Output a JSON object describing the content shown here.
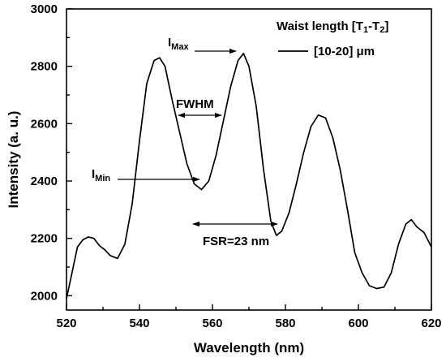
{
  "chart_data": {
    "type": "line",
    "xlabel": "Wavelength (nm)",
    "ylabel": "Intensity (a. u.)",
    "xlim": [
      520,
      620
    ],
    "ylim": [
      1950,
      3000
    ],
    "xticks": [
      520,
      540,
      560,
      580,
      600,
      620
    ],
    "yticks": [
      2000,
      2200,
      2400,
      2600,
      2800,
      3000
    ],
    "grid": false,
    "legend": {
      "placement": "top-right",
      "title_parts": {
        "main": "Waist length [T",
        "sub1": "1",
        "dash": "-T",
        "sub2": "2",
        "close": "]"
      },
      "entry": "[10-20] μm"
    },
    "annotations": {
      "imax": {
        "main": "I",
        "sub": "Max"
      },
      "imin": {
        "main": "I",
        "sub": "Min"
      },
      "fwhm": "FWHM",
      "fsr": "FSR=23 nm"
    },
    "series": [
      {
        "x": [
          520,
          521.5,
          523,
          524.5,
          526,
          527.5,
          529,
          530.5,
          532,
          534,
          536,
          538,
          540,
          542,
          544,
          545.5,
          547,
          549,
          551,
          553,
          555,
          557,
          559,
          561,
          563,
          565,
          567,
          568.5,
          570,
          572,
          574,
          576,
          577.5,
          579,
          581,
          583,
          585,
          587,
          589,
          591,
          593,
          595,
          597,
          599,
          601,
          603,
          605,
          607,
          609,
          611,
          613,
          614.5,
          616,
          618,
          620
        ],
        "y": [
          1990,
          2080,
          2170,
          2195,
          2205,
          2200,
          2175,
          2160,
          2140,
          2130,
          2180,
          2320,
          2540,
          2740,
          2820,
          2830,
          2800,
          2680,
          2570,
          2460,
          2390,
          2370,
          2400,
          2490,
          2610,
          2730,
          2820,
          2845,
          2800,
          2660,
          2440,
          2260,
          2210,
          2225,
          2290,
          2390,
          2500,
          2590,
          2630,
          2620,
          2550,
          2440,
          2300,
          2150,
          2080,
          2035,
          2025,
          2030,
          2080,
          2180,
          2250,
          2265,
          2240,
          2220,
          2170
        ]
      }
    ]
  }
}
